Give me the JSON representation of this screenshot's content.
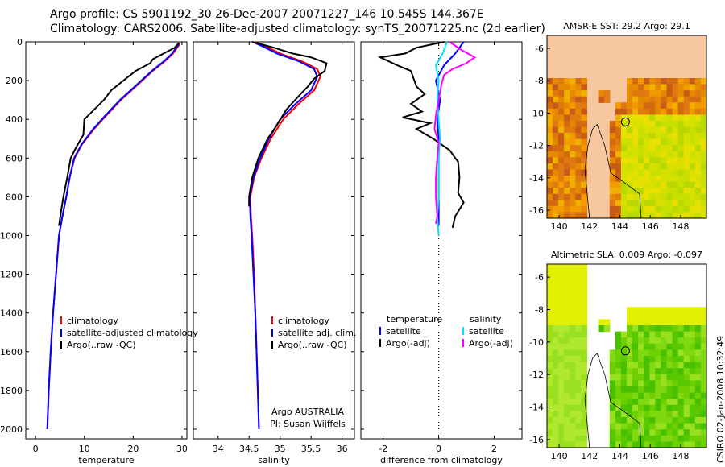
{
  "header": {
    "line1": "Argo profile: CS 5901192_30 26-Dec-2007 20071227_146 10.545S 144.367E",
    "line2": "Climatology: CARS2006. Satellite-adjusted climatology: synTS_20071225.nc (2d earlier)"
  },
  "side_label": "CSIRO 02-Jan-2008 10:32:49",
  "chart_data": [
    {
      "type": "line",
      "id": "temperature",
      "xlabel": "temperature",
      "xlim": [
        -2,
        31
      ],
      "xticks": [
        0,
        10,
        20,
        30
      ],
      "ylim": [
        2050,
        0
      ],
      "yticks": [
        0,
        200,
        400,
        600,
        800,
        1000,
        1200,
        1400,
        1600,
        1800,
        2000
      ],
      "legend": [
        "climatology",
        "satellite-adjusted climatology",
        "Argo(..raw -QC)"
      ],
      "series": [
        {
          "name": "climatology",
          "color": "#ff0000",
          "points": [
            [
              29.6,
              10
            ],
            [
              29,
              30
            ],
            [
              28.2,
              60
            ],
            [
              26.5,
              100
            ],
            [
              24,
              150
            ],
            [
              21,
              220
            ],
            [
              17.5,
              300
            ],
            [
              14.5,
              380
            ],
            [
              12,
              450
            ],
            [
              9.5,
              530
            ],
            [
              8,
              600
            ],
            [
              7,
              700
            ],
            [
              6.3,
              800
            ],
            [
              5.5,
              900
            ],
            [
              4.8,
              1000
            ],
            [
              4.2,
              1200
            ],
            [
              3.6,
              1400
            ],
            [
              3.1,
              1600
            ],
            [
              2.7,
              1800
            ],
            [
              2.4,
              2000
            ]
          ]
        },
        {
          "name": "satellite-adjusted climatology",
          "color": "#0000ff",
          "points": [
            [
              29.4,
              10
            ],
            [
              28.8,
              30
            ],
            [
              28,
              60
            ],
            [
              26.3,
              100
            ],
            [
              23.8,
              150
            ],
            [
              20.8,
              220
            ],
            [
              17.3,
              300
            ],
            [
              14.3,
              380
            ],
            [
              11.8,
              450
            ],
            [
              9.4,
              530
            ],
            [
              7.9,
              600
            ],
            [
              7,
              700
            ],
            [
              6.3,
              800
            ],
            [
              5.5,
              900
            ],
            [
              4.8,
              1000
            ],
            [
              4.2,
              1200
            ],
            [
              3.6,
              1400
            ],
            [
              3.1,
              1600
            ],
            [
              2.7,
              1800
            ],
            [
              2.4,
              2000
            ]
          ]
        },
        {
          "name": "Argo(..raw -QC)",
          "color": "#000000",
          "points": [
            [
              29.4,
              5
            ],
            [
              28.5,
              30
            ],
            [
              27,
              50
            ],
            [
              25.5,
              70
            ],
            [
              24,
              90
            ],
            [
              23.5,
              110
            ],
            [
              22,
              130
            ],
            [
              20.5,
              150
            ],
            [
              19.5,
              170
            ],
            [
              18.5,
              190
            ],
            [
              17,
              220
            ],
            [
              15.5,
              250
            ],
            [
              14,
              300
            ],
            [
              12,
              350
            ],
            [
              10,
              400
            ],
            [
              9.8,
              480
            ],
            [
              8.2,
              550
            ],
            [
              7.2,
              600
            ],
            [
              6.5,
              700
            ],
            [
              5.7,
              800
            ],
            [
              5.2,
              880
            ],
            [
              4.8,
              950
            ]
          ]
        }
      ]
    },
    {
      "type": "line",
      "id": "salinity",
      "xlabel": "salinity",
      "xlim": [
        33.6,
        36.2
      ],
      "xticks": [
        34,
        34.5,
        35,
        35.5,
        36
      ],
      "ylim": [
        2050,
        0
      ],
      "legend": [
        "climatology",
        "satellite adj. clim.",
        "Argo(..raw -QC)"
      ],
      "annotation": [
        "Argo AUSTRALIA",
        "PI: Susan Wijffels"
      ],
      "series": [
        {
          "name": "climatology",
          "color": "#ff0000",
          "points": [
            [
              34.6,
              0
            ],
            [
              34.75,
              20
            ],
            [
              35.0,
              60
            ],
            [
              35.35,
              100
            ],
            [
              35.6,
              140
            ],
            [
              35.65,
              180
            ],
            [
              35.55,
              250
            ],
            [
              35.3,
              320
            ],
            [
              35.05,
              400
            ],
            [
              34.85,
              500
            ],
            [
              34.7,
              600
            ],
            [
              34.58,
              700
            ],
            [
              34.52,
              800
            ],
            [
              34.53,
              900
            ],
            [
              34.55,
              1000
            ],
            [
              34.58,
              1200
            ],
            [
              34.6,
              1400
            ],
            [
              34.62,
              1600
            ],
            [
              34.64,
              1800
            ],
            [
              34.66,
              2000
            ]
          ]
        },
        {
          "name": "satellite adj. clim.",
          "color": "#0000ff",
          "points": [
            [
              34.55,
              0
            ],
            [
              34.7,
              20
            ],
            [
              34.95,
              60
            ],
            [
              35.3,
              100
            ],
            [
              35.55,
              140
            ],
            [
              35.6,
              180
            ],
            [
              35.5,
              250
            ],
            [
              35.25,
              320
            ],
            [
              35.0,
              400
            ],
            [
              34.82,
              500
            ],
            [
              34.68,
              600
            ],
            [
              34.57,
              700
            ],
            [
              34.51,
              800
            ],
            [
              34.52,
              900
            ],
            [
              34.54,
              1000
            ],
            [
              34.57,
              1200
            ],
            [
              34.6,
              1400
            ],
            [
              34.62,
              1600
            ],
            [
              34.64,
              1800
            ],
            [
              34.66,
              2000
            ]
          ]
        },
        {
          "name": "Argo(..raw -QC)",
          "color": "#000000",
          "points": [
            [
              34.55,
              0
            ],
            [
              34.9,
              30
            ],
            [
              35.2,
              60
            ],
            [
              35.5,
              80
            ],
            [
              35.75,
              110
            ],
            [
              35.72,
              150
            ],
            [
              35.55,
              190
            ],
            [
              35.45,
              230
            ],
            [
              35.3,
              280
            ],
            [
              35.1,
              350
            ],
            [
              34.95,
              430
            ],
            [
              34.8,
              500
            ],
            [
              34.65,
              600
            ],
            [
              34.55,
              700
            ],
            [
              34.5,
              800
            ],
            [
              34.5,
              850
            ]
          ]
        }
      ]
    },
    {
      "type": "line",
      "id": "difference",
      "xlabel": "difference from climatology",
      "xlim": [
        -2.8,
        3
      ],
      "xticks": [
        -2,
        0,
        2
      ],
      "ylim": [
        2050,
        0
      ],
      "legend_titles": [
        "temperature",
        "salinity"
      ],
      "legend": [
        "satellite",
        "Argo(-adj)",
        "satellite",
        "Argo(-adj)"
      ],
      "series": [
        {
          "name": "temperature satellite",
          "color": "#0000ff",
          "points": [
            [
              0.9,
              0
            ],
            [
              0.6,
              60
            ],
            [
              0.2,
              120
            ],
            [
              -0.1,
              200
            ],
            [
              0.05,
              300
            ],
            [
              -0.05,
              400
            ],
            [
              0,
              500
            ],
            [
              0,
              600
            ],
            [
              0,
              700
            ],
            [
              0,
              800
            ],
            [
              0,
              900
            ],
            [
              0,
              950
            ]
          ]
        },
        {
          "name": "temperature Argo(-adj)",
          "color": "#000000",
          "points": [
            [
              0.2,
              0
            ],
            [
              -0.8,
              30
            ],
            [
              -1.2,
              60
            ],
            [
              -2.1,
              80
            ],
            [
              -1.5,
              120
            ],
            [
              -1.0,
              150
            ],
            [
              -0.9,
              190
            ],
            [
              -0.8,
              230
            ],
            [
              -0.5,
              270
            ],
            [
              -1.0,
              320
            ],
            [
              -0.6,
              360
            ],
            [
              -1.3,
              390
            ],
            [
              -0.3,
              420
            ],
            [
              -0.8,
              450
            ],
            [
              -0.2,
              500
            ],
            [
              0.4,
              560
            ],
            [
              0.7,
              620
            ],
            [
              0.75,
              700
            ],
            [
              0.7,
              780
            ],
            [
              0.9,
              830
            ],
            [
              0.6,
              900
            ],
            [
              0.5,
              960
            ]
          ]
        },
        {
          "name": "salinity satellite",
          "color": "#00e5ff",
          "points": [
            [
              0.3,
              0
            ],
            [
              0.15,
              60
            ],
            [
              -0.1,
              120
            ],
            [
              0,
              200
            ],
            [
              -0.05,
              300
            ],
            [
              0,
              400
            ],
            [
              0.05,
              500
            ],
            [
              0,
              600
            ],
            [
              0,
              800
            ],
            [
              -0.05,
              900
            ],
            [
              0,
              1000
            ]
          ]
        },
        {
          "name": "salinity Argo(-adj)",
          "color": "#ff00ff",
          "points": [
            [
              0.4,
              0
            ],
            [
              0.8,
              40
            ],
            [
              1.3,
              80
            ],
            [
              1.0,
              110
            ],
            [
              0.5,
              140
            ],
            [
              0.2,
              170
            ],
            [
              0.1,
              220
            ],
            [
              0,
              300
            ],
            [
              -0.1,
              380
            ],
            [
              -0.15,
              450
            ],
            [
              0,
              520
            ],
            [
              -0.05,
              600
            ],
            [
              -0.1,
              700
            ],
            [
              -0.1,
              800
            ],
            [
              -0.05,
              900
            ],
            [
              -0.1,
              940
            ]
          ]
        }
      ]
    },
    {
      "type": "heatmap",
      "id": "sst_map",
      "title": "AMSR-E SST: 29.2  Argo: 29.1",
      "xticks": [
        140,
        142,
        144,
        146,
        148
      ],
      "yticks": [
        -6,
        -8,
        -10,
        -12,
        -14,
        -16
      ],
      "xlim": [
        139.2,
        149.7
      ],
      "ylim": [
        -16.5,
        -5.2
      ],
      "float_position": [
        144.367,
        -10.545
      ]
    },
    {
      "type": "heatmap",
      "id": "sla_map",
      "title": "Altimetric SLA: 0.009  Argo: -0.097",
      "xticks": [
        140,
        142,
        144,
        146,
        148
      ],
      "yticks": [
        -6,
        -8,
        -10,
        -12,
        -14,
        -16
      ],
      "xlim": [
        139.2,
        149.7
      ],
      "ylim": [
        -16.5,
        -5.2
      ],
      "float_position": [
        144.367,
        -10.545
      ]
    }
  ]
}
